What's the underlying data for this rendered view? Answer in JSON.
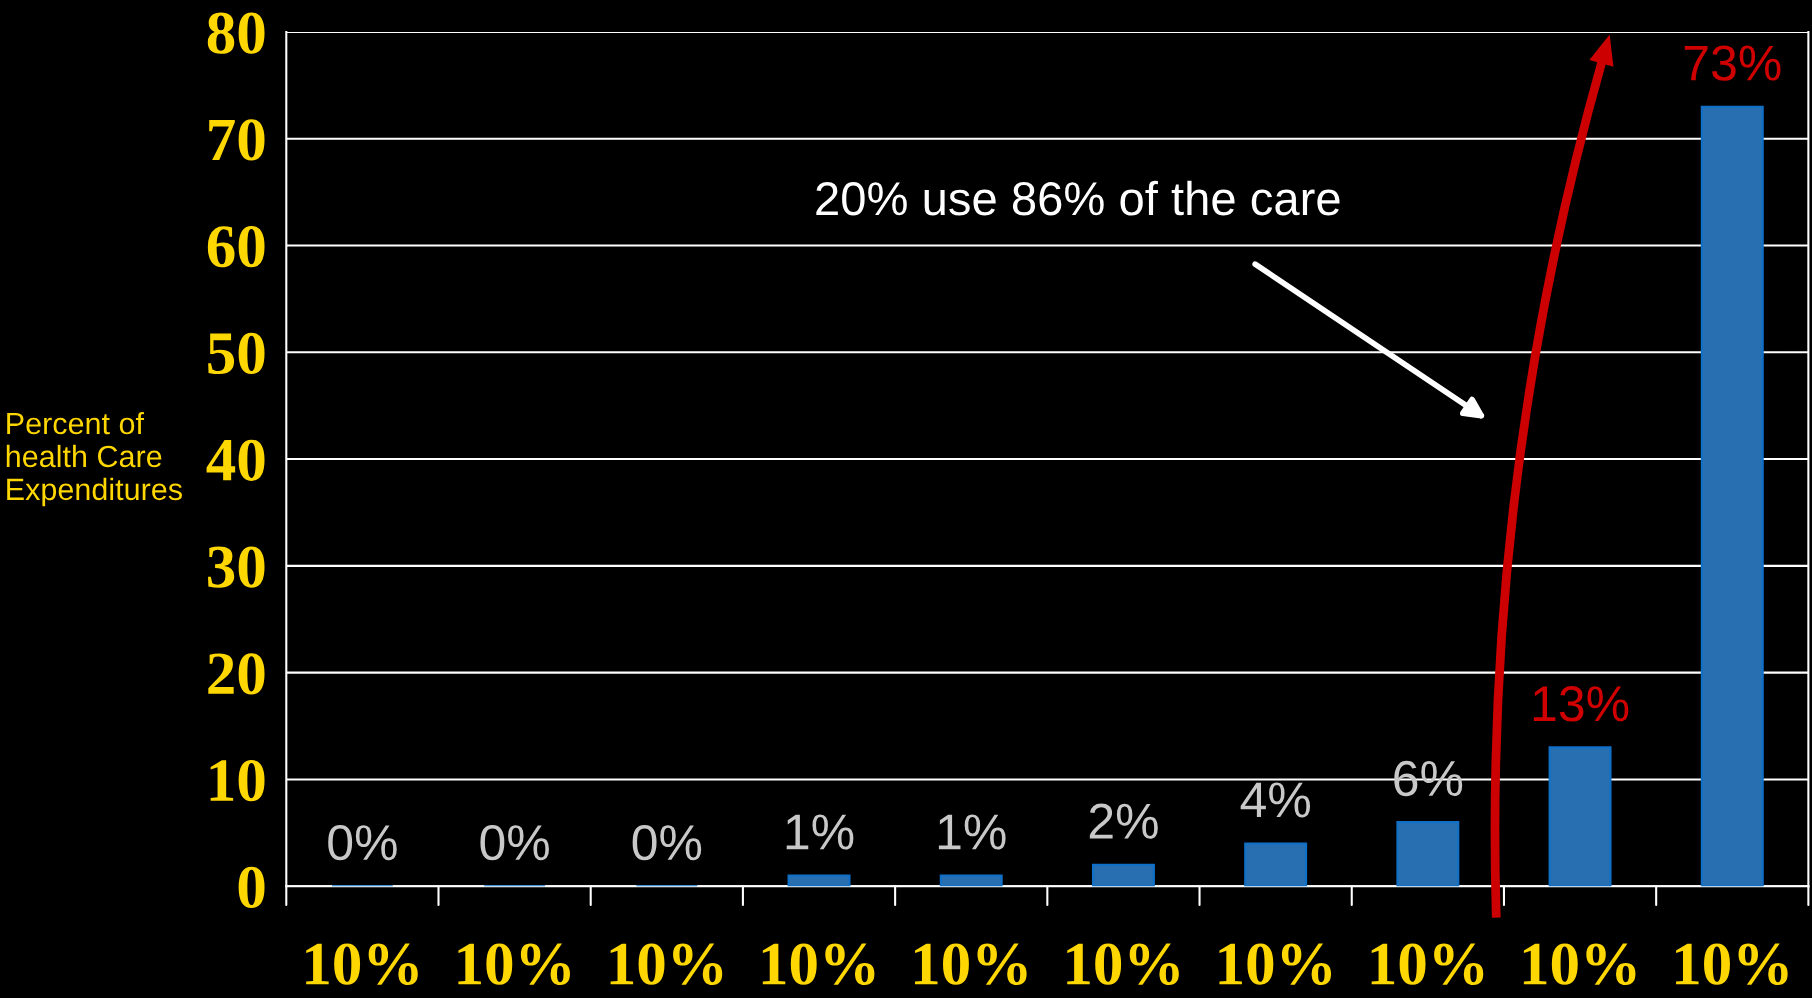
{
  "chart_data": {
    "type": "bar",
    "ylabel": "Percent of health Care Expenditures",
    "categories": [
      "10%",
      "10%",
      "10%",
      "10%",
      "10%",
      "10%",
      "10%",
      "10%",
      "10%",
      "10%"
    ],
    "values": [
      0,
      0,
      0,
      1,
      1,
      2,
      4,
      6,
      13,
      73
    ],
    "color": "#1070c8",
    "value_labels": [
      "0%",
      "0%",
      "0%",
      "1%",
      "1%",
      "2%",
      "4%",
      "6%",
      "13%",
      "73%"
    ],
    "ylim": [
      0,
      80
    ],
    "yticks": [
      0,
      10,
      20,
      30,
      40,
      50,
      60,
      70,
      80
    ],
    "grid": "y",
    "annotations": [
      "20% use 86% of the care"
    ]
  }
}
